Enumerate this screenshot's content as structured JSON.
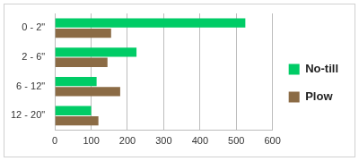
{
  "chart_data": {
    "type": "bar",
    "orientation": "horizontal",
    "categories": [
      "0 - 2\"",
      "2 - 6\"",
      "6 - 12\"",
      "12 - 20\""
    ],
    "series": [
      {
        "name": "No-till",
        "color": "#00cc66",
        "values": [
          525,
          225,
          115,
          100
        ]
      },
      {
        "name": "Plow",
        "color": "#8b6b45",
        "values": [
          155,
          145,
          180,
          120
        ]
      }
    ],
    "xlim": [
      0,
      600
    ],
    "xticks": [
      0,
      100,
      200,
      300,
      400,
      500,
      600
    ],
    "grid": true,
    "legend": "right"
  }
}
